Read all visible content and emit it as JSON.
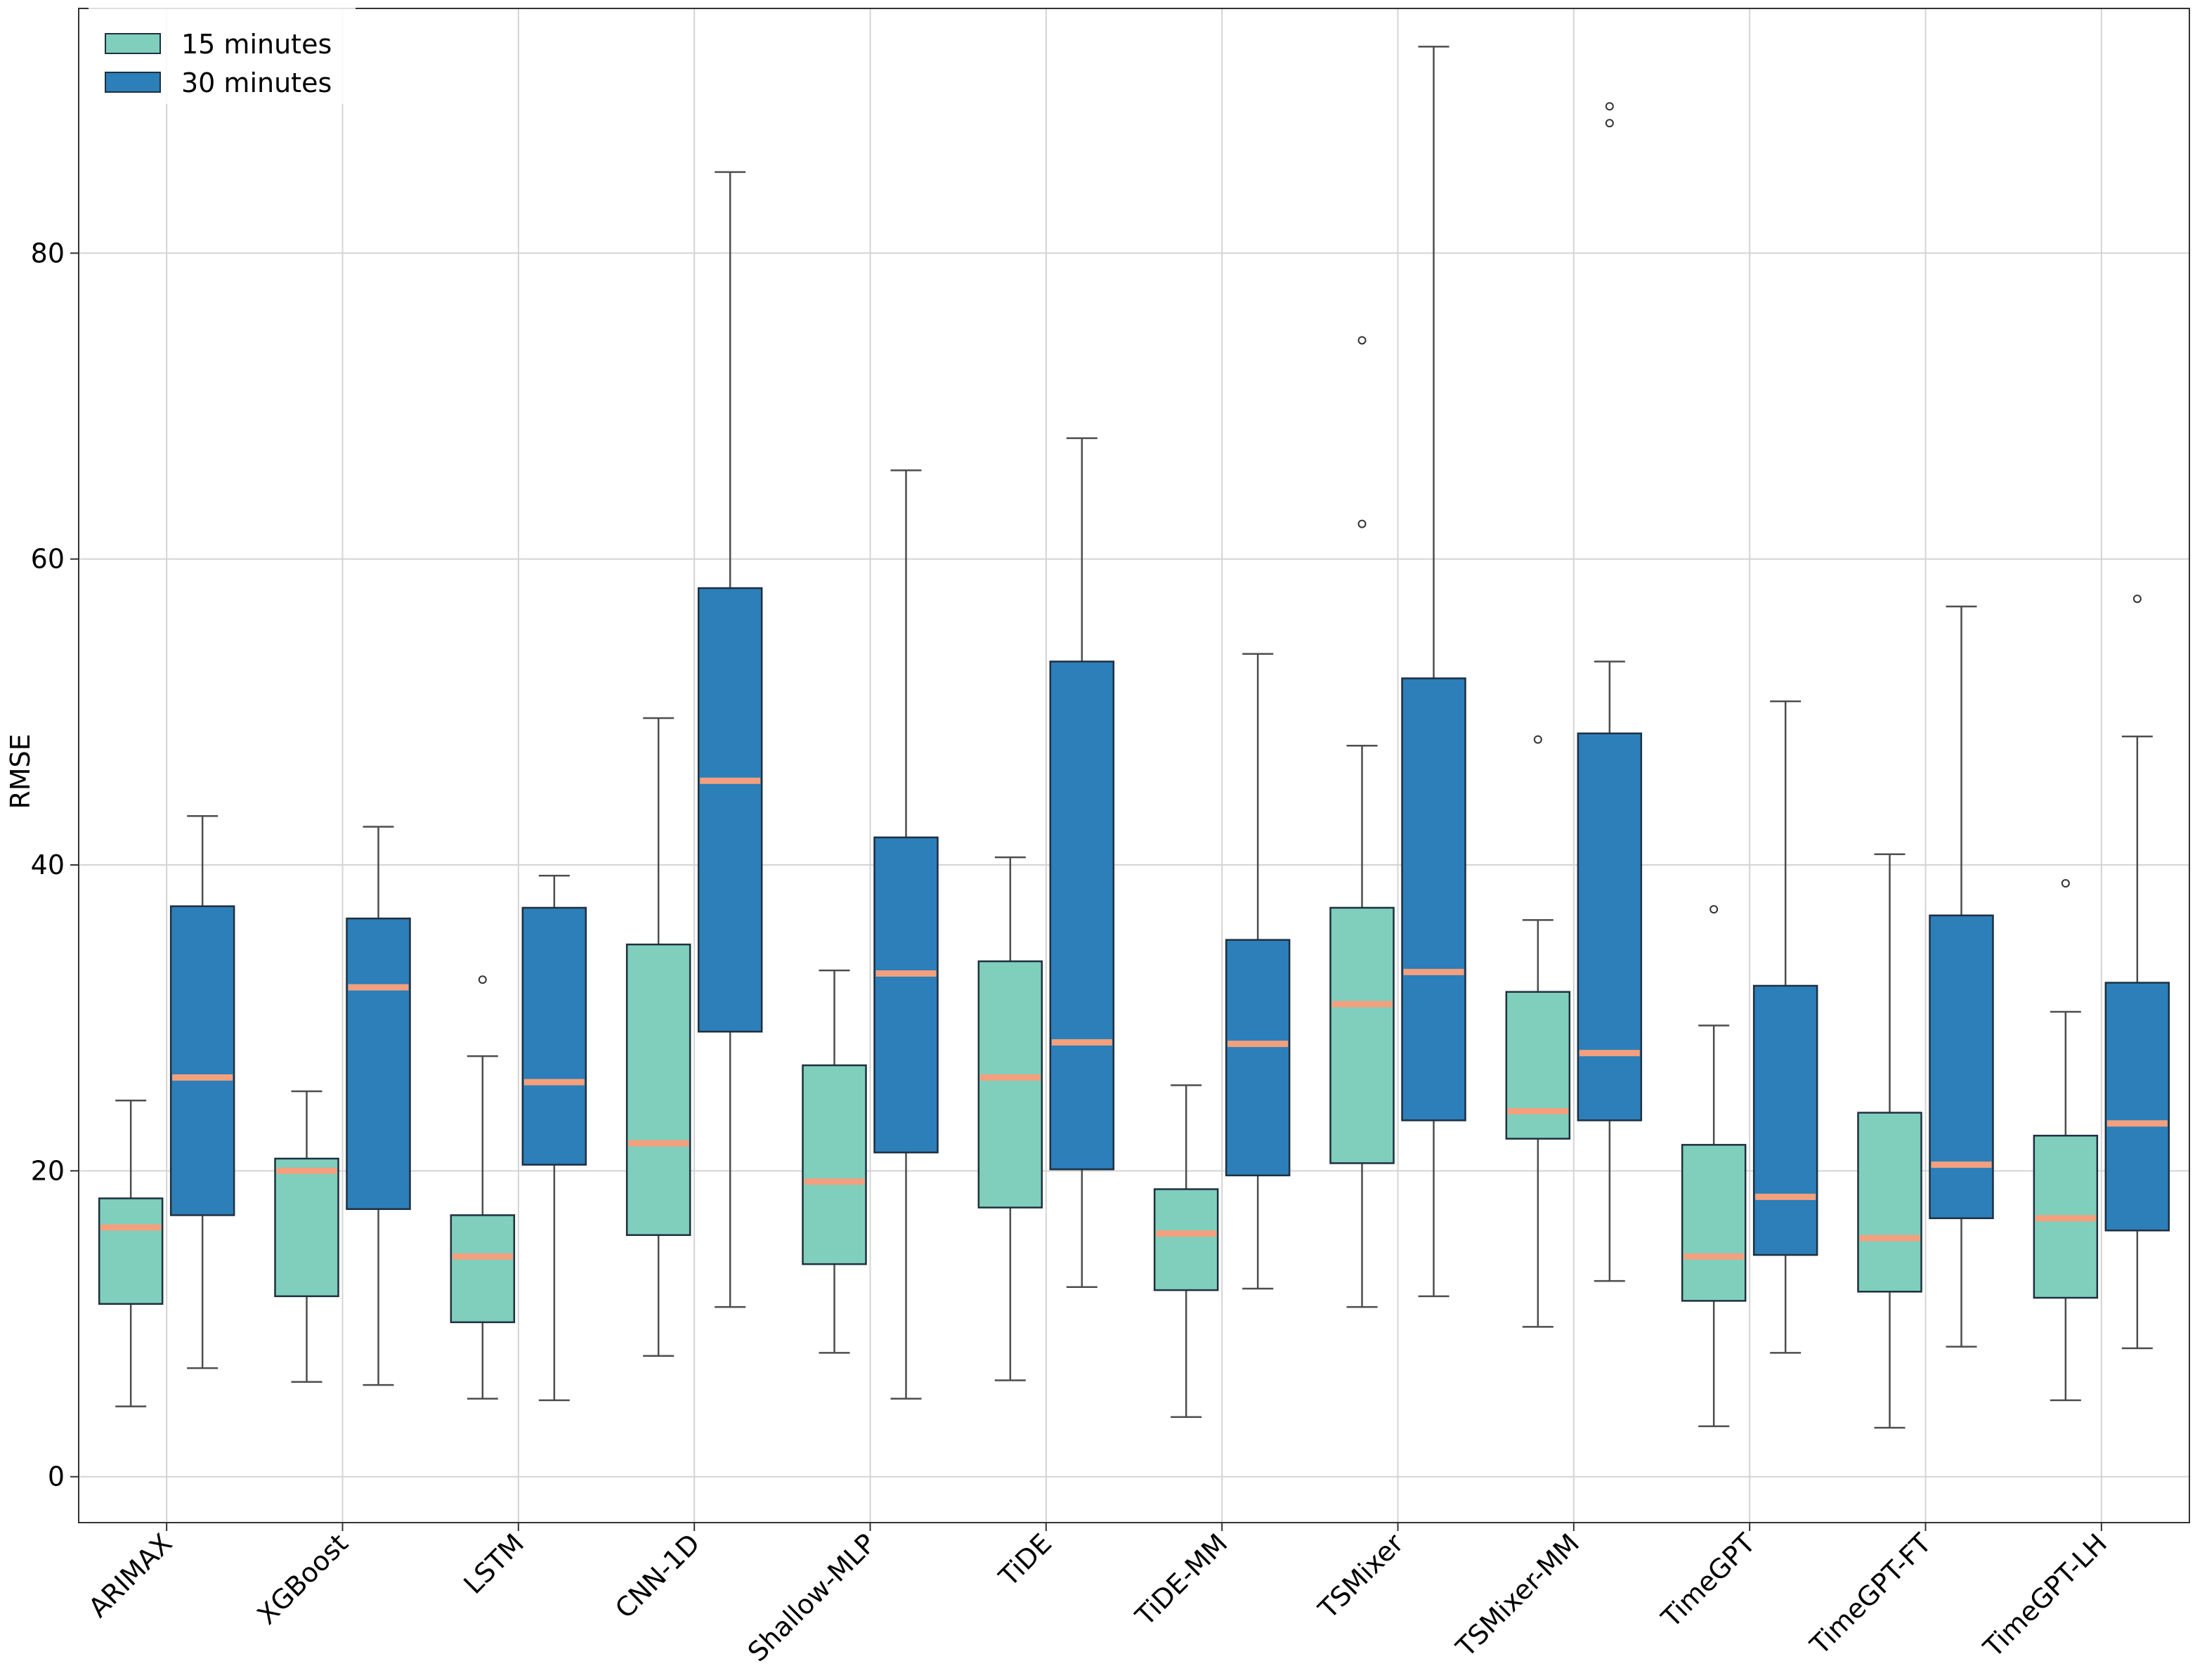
{
  "chart_data": {
    "type": "box",
    "title": "",
    "xlabel": "",
    "ylabel": "RMSE",
    "ylim": [
      -3,
      96
    ],
    "yticks": [
      0,
      20,
      40,
      60,
      80
    ],
    "grid": true,
    "legend_position": "top-left",
    "categories": [
      "ARIMAX",
      "XGBoost",
      "LSTM",
      "CNN-1D",
      "Shallow-MLP",
      "TiDE",
      "TiDE-MM",
      "TSMixer",
      "TSMixer-MM",
      "TimeGPT",
      "TimeGPT-FT",
      "TimeGPT-LH"
    ],
    "series": [
      {
        "name": "15 minutes",
        "color": "#7fcfbc",
        "boxes": [
          {
            "whislo": 4.6,
            "q1": 11.3,
            "med": 16.3,
            "q3": 18.2,
            "whishi": 24.6,
            "fliers": []
          },
          {
            "whislo": 6.2,
            "q1": 11.8,
            "med": 20.0,
            "q3": 20.8,
            "whishi": 25.2,
            "fliers": []
          },
          {
            "whislo": 5.1,
            "q1": 10.1,
            "med": 14.4,
            "q3": 17.1,
            "whishi": 27.5,
            "fliers": [
              32.5
            ]
          },
          {
            "whislo": 7.9,
            "q1": 15.8,
            "med": 21.8,
            "q3": 34.8,
            "whishi": 49.6,
            "fliers": []
          },
          {
            "whislo": 8.1,
            "q1": 13.9,
            "med": 19.3,
            "q3": 26.9,
            "whishi": 33.1,
            "fliers": []
          },
          {
            "whislo": 6.3,
            "q1": 17.6,
            "med": 26.1,
            "q3": 33.7,
            "whishi": 40.5,
            "fliers": []
          },
          {
            "whislo": 3.9,
            "q1": 12.2,
            "med": 15.9,
            "q3": 18.8,
            "whishi": 25.6,
            "fliers": []
          },
          {
            "whislo": 11.1,
            "q1": 20.5,
            "med": 30.9,
            "q3": 37.2,
            "whishi": 47.8,
            "fliers": [
              62.3,
              74.3
            ]
          },
          {
            "whislo": 9.8,
            "q1": 22.1,
            "med": 23.9,
            "q3": 31.7,
            "whishi": 36.4,
            "fliers": [
              48.2
            ]
          },
          {
            "whislo": 3.3,
            "q1": 11.5,
            "med": 14.4,
            "q3": 21.7,
            "whishi": 29.5,
            "fliers": [
              37.1
            ]
          },
          {
            "whislo": 3.2,
            "q1": 12.1,
            "med": 15.6,
            "q3": 23.8,
            "whishi": 40.7,
            "fliers": []
          },
          {
            "whislo": 5.0,
            "q1": 11.7,
            "med": 16.9,
            "q3": 22.3,
            "whishi": 30.4,
            "fliers": [
              38.8
            ]
          }
        ]
      },
      {
        "name": "30 minutes",
        "color": "#2c7fb8",
        "boxes": [
          {
            "whislo": 7.1,
            "q1": 17.1,
            "med": 26.1,
            "q3": 37.3,
            "whishi": 43.2,
            "fliers": []
          },
          {
            "whislo": 6.0,
            "q1": 17.5,
            "med": 32.0,
            "q3": 36.5,
            "whishi": 42.5,
            "fliers": []
          },
          {
            "whislo": 5.0,
            "q1": 20.4,
            "med": 25.8,
            "q3": 37.2,
            "whishi": 39.3,
            "fliers": []
          },
          {
            "whislo": 11.1,
            "q1": 29.1,
            "med": 45.5,
            "q3": 58.1,
            "whishi": 85.3,
            "fliers": []
          },
          {
            "whislo": 5.1,
            "q1": 21.2,
            "med": 32.9,
            "q3": 41.8,
            "whishi": 65.8,
            "fliers": []
          },
          {
            "whislo": 12.4,
            "q1": 20.1,
            "med": 28.4,
            "q3": 53.3,
            "whishi": 67.9,
            "fliers": []
          },
          {
            "whislo": 12.3,
            "q1": 19.7,
            "med": 28.3,
            "q3": 35.1,
            "whishi": 53.8,
            "fliers": []
          },
          {
            "whislo": 11.8,
            "q1": 23.3,
            "med": 33.0,
            "q3": 52.2,
            "whishi": 93.5,
            "fliers": []
          },
          {
            "whislo": 12.8,
            "q1": 23.3,
            "med": 27.7,
            "q3": 48.6,
            "whishi": 53.3,
            "fliers": [
              88.5,
              89.6
            ]
          },
          {
            "whislo": 8.1,
            "q1": 14.5,
            "med": 18.3,
            "q3": 32.1,
            "whishi": 50.7,
            "fliers": []
          },
          {
            "whislo": 8.5,
            "q1": 16.9,
            "med": 20.4,
            "q3": 36.7,
            "whishi": 56.9,
            "fliers": []
          },
          {
            "whislo": 8.4,
            "q1": 16.1,
            "med": 23.1,
            "q3": 32.3,
            "whishi": 48.4,
            "fliers": [
              57.4
            ]
          }
        ]
      }
    ],
    "median_color": "#f4a07e",
    "edge_color": "#1f2f3f",
    "whisker_color": "#4d4d4d",
    "grid_color": "#d4d4d4"
  }
}
